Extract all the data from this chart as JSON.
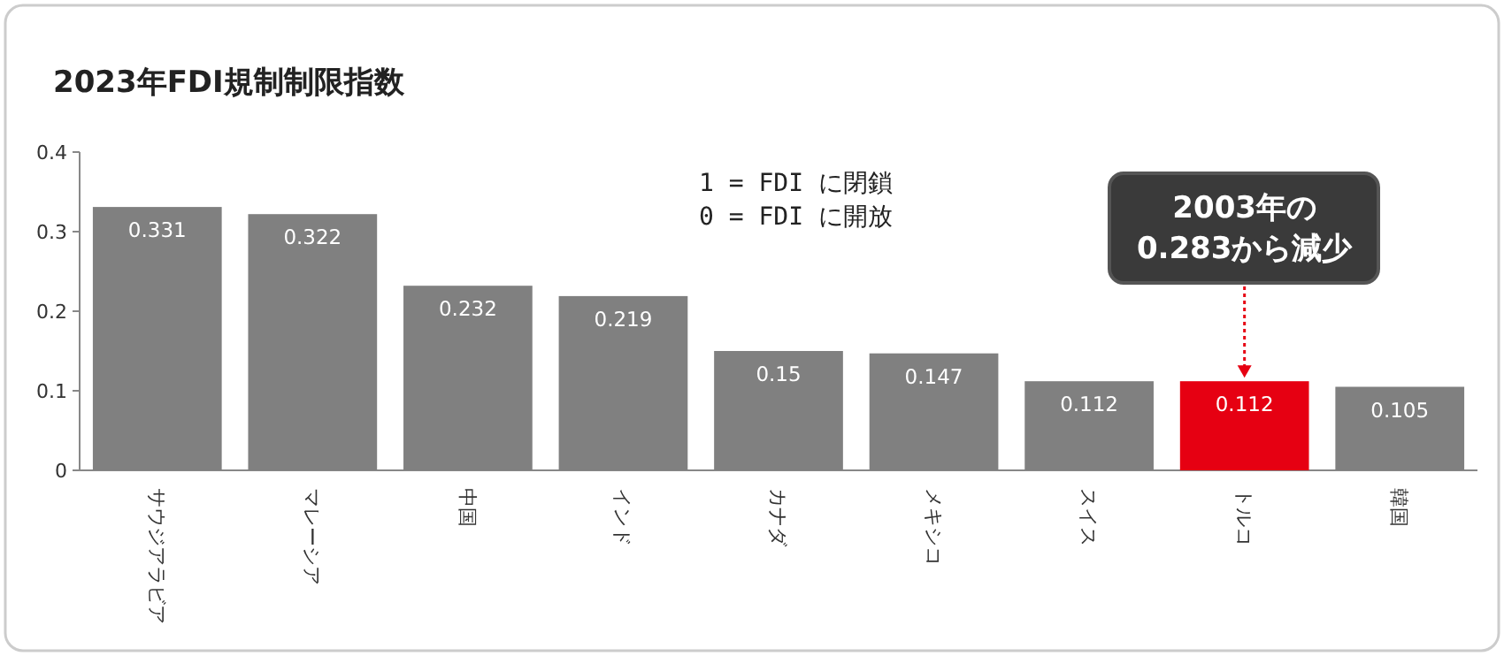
{
  "chart_data": {
    "type": "bar",
    "title": "2023年FDI規制制限指数",
    "categories": [
      "サウジアラビア",
      "マレーシア",
      "中国",
      "インド",
      "カナダ",
      "メキシコ",
      "スイス",
      "トルコ",
      "韓国"
    ],
    "values": [
      0.331,
      0.322,
      0.232,
      0.219,
      0.15,
      0.147,
      0.112,
      0.112,
      0.105
    ],
    "colors": [
      "#808080",
      "#808080",
      "#808080",
      "#808080",
      "#808080",
      "#808080",
      "#808080",
      "#e60012",
      "#808080"
    ],
    "ylim": [
      0,
      0.4
    ],
    "yticks": [
      0,
      0.1,
      0.2,
      0.3,
      0.4
    ],
    "data_labels": true,
    "annotations": [
      "1 = FDI に閉鎖",
      "0 = FDI に開放",
      {
        "text": "2003年の0.283から減少",
        "x": "トルコ",
        "y": 0.112
      }
    ]
  }
}
